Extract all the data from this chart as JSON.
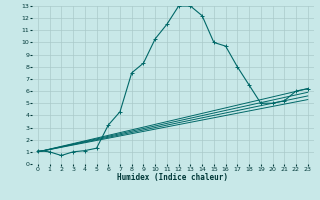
{
  "title": "",
  "xlabel": "Humidex (Indice chaleur)",
  "bg_color": "#c8e8e8",
  "grid_color": "#aacaca",
  "line_color": "#006868",
  "xlim": [
    -0.5,
    23.5
  ],
  "ylim": [
    0,
    13
  ],
  "xticks": [
    0,
    1,
    2,
    3,
    4,
    5,
    6,
    7,
    8,
    9,
    10,
    11,
    12,
    13,
    14,
    15,
    16,
    17,
    18,
    19,
    20,
    21,
    22,
    23
  ],
  "yticks": [
    0,
    1,
    2,
    3,
    4,
    5,
    6,
    7,
    8,
    9,
    10,
    11,
    12,
    13
  ],
  "main_curve_x": [
    0,
    1,
    2,
    3,
    4,
    5,
    6,
    7,
    8,
    9,
    10,
    11,
    12,
    13,
    14,
    15,
    16,
    17,
    18,
    19,
    20,
    21,
    22,
    23
  ],
  "main_curve_y": [
    1.1,
    1.0,
    0.7,
    1.0,
    1.1,
    1.3,
    3.2,
    4.3,
    7.5,
    8.3,
    10.3,
    11.5,
    13.0,
    13.0,
    12.2,
    10.0,
    9.7,
    8.0,
    6.5,
    5.0,
    5.0,
    5.2,
    6.0,
    6.2
  ],
  "diag_lines": [
    {
      "x": [
        0,
        23
      ],
      "y": [
        1.0,
        6.2
      ]
    },
    {
      "x": [
        0,
        23
      ],
      "y": [
        1.0,
        5.9
      ]
    },
    {
      "x": [
        0,
        23
      ],
      "y": [
        1.0,
        5.6
      ]
    },
    {
      "x": [
        0,
        23
      ],
      "y": [
        1.0,
        5.3
      ]
    }
  ]
}
